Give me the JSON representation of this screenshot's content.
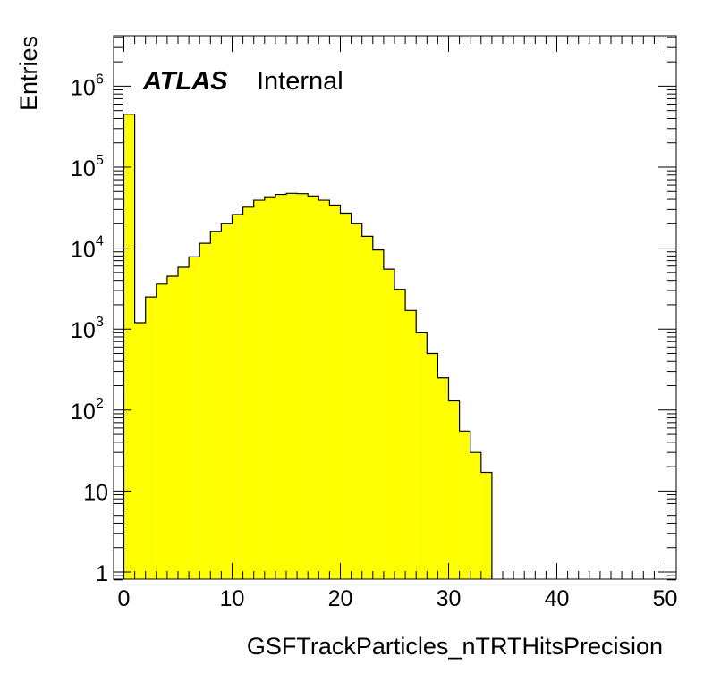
{
  "chart_data": {
    "type": "bar",
    "title": "",
    "xlabel": "GSFTrackParticles_nTRTHitsPrecision",
    "ylabel": "Entries",
    "log_y": true,
    "xlim": [
      -0.5,
      50.5
    ],
    "ylim": [
      0.8,
      4500000
    ],
    "grid": false,
    "fill_color": "#ffff00",
    "edge_color": "#000000",
    "watermark": {
      "bold": "ATLAS",
      "text": "Internal"
    },
    "x_ticks": [
      {
        "value": 0,
        "label": "0"
      },
      {
        "value": 10,
        "label": "10"
      },
      {
        "value": 20,
        "label": "20"
      },
      {
        "value": 30,
        "label": "30"
      },
      {
        "value": 40,
        "label": "40"
      },
      {
        "value": 50,
        "label": "50"
      }
    ],
    "y_ticks": [
      {
        "value": 1,
        "base": "1",
        "exp": ""
      },
      {
        "value": 10,
        "base": "10",
        "exp": ""
      },
      {
        "value": 100,
        "base": "10",
        "exp": "2"
      },
      {
        "value": 1000,
        "base": "10",
        "exp": "3"
      },
      {
        "value": 10000,
        "base": "10",
        "exp": "4"
      },
      {
        "value": 100000,
        "base": "10",
        "exp": "5"
      },
      {
        "value": 1000000,
        "base": "10",
        "exp": "6"
      }
    ],
    "bin_width": 1,
    "bins": [
      {
        "x": 0,
        "value": 450000
      },
      {
        "x": 1,
        "value": 1200
      },
      {
        "x": 2,
        "value": 2500
      },
      {
        "x": 3,
        "value": 3600
      },
      {
        "x": 4,
        "value": 4500
      },
      {
        "x": 5,
        "value": 5800
      },
      {
        "x": 6,
        "value": 7800
      },
      {
        "x": 7,
        "value": 11500
      },
      {
        "x": 8,
        "value": 16000
      },
      {
        "x": 9,
        "value": 20000
      },
      {
        "x": 10,
        "value": 26000
      },
      {
        "x": 11,
        "value": 32000
      },
      {
        "x": 12,
        "value": 39000
      },
      {
        "x": 13,
        "value": 43000
      },
      {
        "x": 14,
        "value": 46000
      },
      {
        "x": 15,
        "value": 47500
      },
      {
        "x": 16,
        "value": 47000
      },
      {
        "x": 17,
        "value": 44000
      },
      {
        "x": 18,
        "value": 39000
      },
      {
        "x": 19,
        "value": 34000
      },
      {
        "x": 20,
        "value": 27000
      },
      {
        "x": 21,
        "value": 20000
      },
      {
        "x": 22,
        "value": 14000
      },
      {
        "x": 23,
        "value": 9500
      },
      {
        "x": 24,
        "value": 5500
      },
      {
        "x": 25,
        "value": 3100
      },
      {
        "x": 26,
        "value": 1700
      },
      {
        "x": 27,
        "value": 900
      },
      {
        "x": 28,
        "value": 500
      },
      {
        "x": 29,
        "value": 250
      },
      {
        "x": 30,
        "value": 130
      },
      {
        "x": 31,
        "value": 55
      },
      {
        "x": 32,
        "value": 30
      },
      {
        "x": 33,
        "value": 17
      }
    ]
  }
}
